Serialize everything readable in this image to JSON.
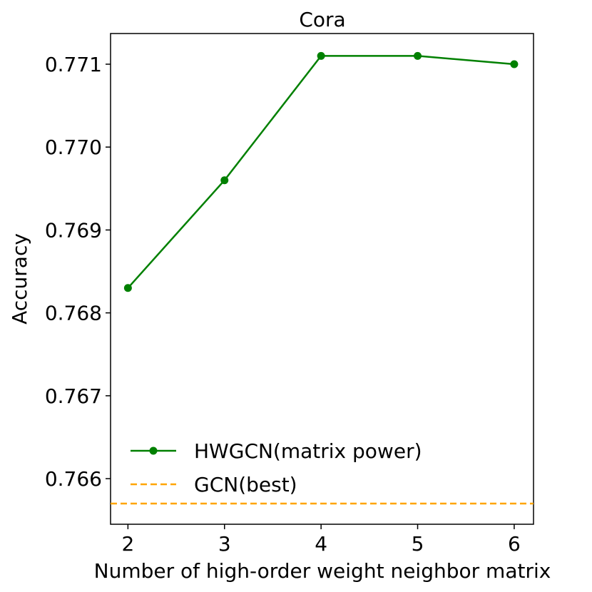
{
  "chart_data": {
    "type": "line",
    "title": "Cora",
    "xlabel": "Number of high-order weight neighbor matrix",
    "ylabel": "Accuracy",
    "x": [
      2,
      3,
      4,
      5,
      6
    ],
    "x_ticks": [
      "2",
      "3",
      "4",
      "5",
      "6"
    ],
    "xlim": [
      1.82,
      6.2
    ],
    "ylim": [
      0.76545,
      0.77137
    ],
    "y_ticks": [
      0.766,
      0.767,
      0.768,
      0.769,
      0.77,
      0.771
    ],
    "y_tick_labels": [
      "0.766",
      "0.767",
      "0.768",
      "0.769",
      "0.770",
      "0.771"
    ],
    "series": [
      {
        "name": "HWGCN(matrix power)",
        "values": [
          0.7683,
          0.7696,
          0.7711,
          0.7711,
          0.771
        ],
        "color": "#008000",
        "style": "solid",
        "marker": "circle"
      }
    ],
    "reference_lines": [
      {
        "name": "GCN(best)",
        "y": 0.7657,
        "color": "#FFA500",
        "style": "dashed"
      }
    ],
    "legend_position": "lower-left",
    "grid": false
  }
}
